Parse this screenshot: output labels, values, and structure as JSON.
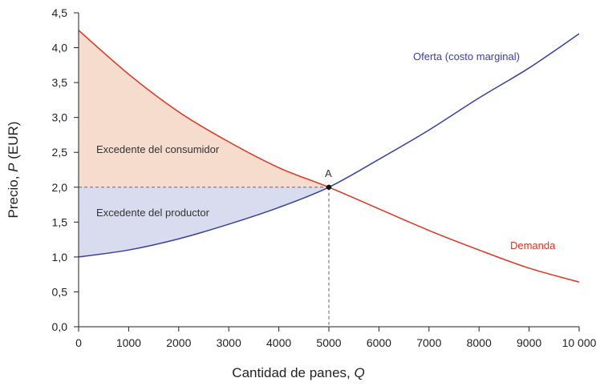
{
  "chart_data": {
    "type": "line",
    "xlabel": "Cantidad de panes, ",
    "xlabel_var": "Q",
    "ylabel": "Precio, ",
    "ylabel_var": "P",
    "ylabel_unit": " (EUR)",
    "xlim": [
      0,
      10000
    ],
    "ylim": [
      0,
      4.5
    ],
    "x_ticks": [
      0,
      1000,
      2000,
      3000,
      4000,
      5000,
      6000,
      7000,
      8000,
      9000,
      10000
    ],
    "x_tick_labels": [
      "0",
      "1000",
      "2000",
      "3000",
      "4000",
      "5000",
      "6000",
      "7000",
      "8000",
      "9000",
      "10 000"
    ],
    "y_ticks": [
      0,
      0.5,
      1.0,
      1.5,
      2.0,
      2.5,
      3.0,
      3.5,
      4.0,
      4.5
    ],
    "y_tick_labels": [
      "0,0",
      "0,5",
      "1,0",
      "1,5",
      "2,0",
      "2,5",
      "3,0",
      "3,5",
      "4,0",
      "4,5"
    ],
    "grid": false,
    "series": [
      {
        "name": "Oferta (costo marginal)",
        "color": "#3a3fa8",
        "x": [
          0,
          1000,
          2000,
          3000,
          4000,
          5000,
          6000,
          7000,
          8000,
          9000,
          10000
        ],
        "y": [
          1.0,
          1.1,
          1.26,
          1.47,
          1.71,
          2.0,
          2.4,
          2.82,
          3.28,
          3.71,
          4.2
        ]
      },
      {
        "name": "Demanda",
        "color": "#e2321e",
        "x": [
          0,
          1000,
          2000,
          3000,
          4000,
          5000,
          6000,
          7000,
          8000,
          9000,
          10000
        ],
        "y": [
          4.25,
          3.62,
          3.08,
          2.65,
          2.28,
          2.0,
          1.69,
          1.38,
          1.1,
          0.84,
          0.64
        ]
      }
    ],
    "equilibrium": {
      "label": "A",
      "x": 5000,
      "y": 2.0
    },
    "annotations": {
      "consumer_surplus": "Excedente del consumidor",
      "producer_surplus": "Excedente del productor"
    },
    "colors": {
      "consumer_fill": "#f5dccd",
      "producer_fill": "#d8dcee",
      "axis": "#222222",
      "dashed": "#666666"
    }
  }
}
